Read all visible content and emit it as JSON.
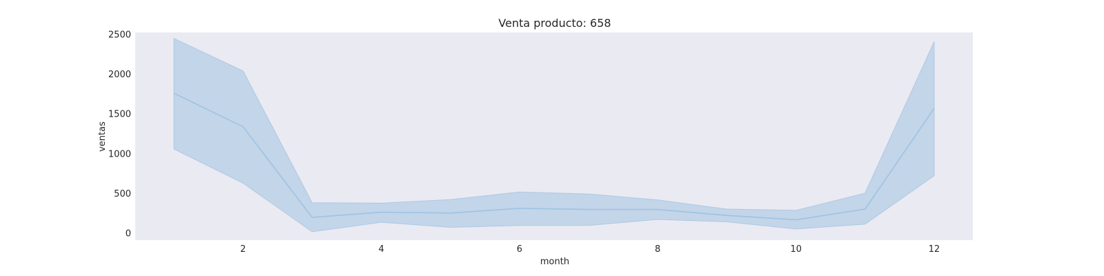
{
  "chart_data": {
    "type": "line",
    "title": "Venta producto: 658",
    "xlabel": "month",
    "ylabel": "ventas",
    "xlim": [
      0.44,
      12.56
    ],
    "ylim": [
      -85,
      2525
    ],
    "xticks": [
      2,
      4,
      6,
      8,
      10,
      12
    ],
    "yticks": [
      0,
      500,
      1000,
      1500,
      2000,
      2500
    ],
    "grid": false,
    "series": [
      {
        "x": [
          1,
          2,
          3,
          4,
          5,
          6,
          7,
          8,
          9,
          10,
          11,
          12
        ],
        "values": [
          1760,
          1340,
          200,
          265,
          255,
          315,
          300,
          300,
          225,
          170,
          305,
          1570
        ],
        "lower": [
          1060,
          630,
          20,
          140,
          75,
          100,
          100,
          175,
          145,
          55,
          115,
          725
        ],
        "upper": [
          2450,
          2040,
          385,
          380,
          425,
          520,
          495,
          420,
          305,
          290,
          505,
          2410
        ]
      }
    ],
    "colors": {
      "line": "#9dc3e2",
      "band": "#a8c6e2",
      "plot_background": "#eaeaf2"
    }
  }
}
